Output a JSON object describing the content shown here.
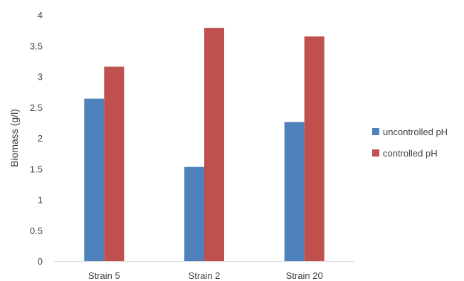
{
  "chart_data": {
    "type": "bar",
    "title": "",
    "xlabel": "",
    "ylabel": "Biomass (g/l)",
    "ylim": [
      0,
      4
    ],
    "yticks": [
      "0",
      "0.5",
      "1",
      "1.5",
      "2",
      "2.5",
      "3",
      "3.5",
      "4"
    ],
    "grid": false,
    "legend_position": "right",
    "categories": [
      "Strain 5",
      "Strain 2",
      "Strain 20"
    ],
    "series": [
      {
        "name": "uncontrolled pH",
        "color": "#4F81BD",
        "values": [
          2.64,
          1.53,
          2.26
        ]
      },
      {
        "name": "controlled pH",
        "color": "#C0504D",
        "values": [
          3.16,
          3.79,
          3.65
        ]
      }
    ]
  }
}
